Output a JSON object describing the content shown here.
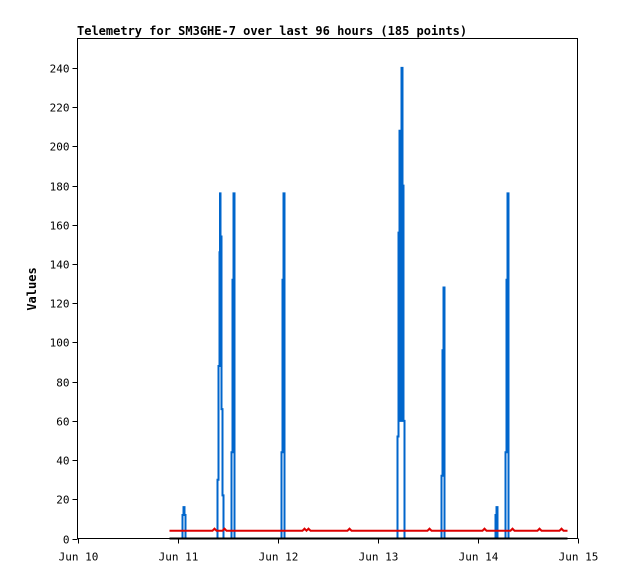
{
  "chart_data": {
    "type": "line",
    "title": "Telemetry for SM3GHE-7 over last 96 hours (185 points)",
    "xlabel": "",
    "ylabel": "Values",
    "xlim": [
      "Jun 10",
      "Jun 15"
    ],
    "ylim": [
      0,
      255
    ],
    "x_tick_labels": [
      "Jun 10",
      "Jun 11",
      "Jun 12",
      "Jun 13",
      "Jun 14",
      "Jun 15"
    ],
    "y_ticks": [
      0,
      20,
      40,
      60,
      80,
      100,
      120,
      140,
      160,
      180,
      200,
      220,
      240
    ],
    "grid": false,
    "legend": "none",
    "series": [
      {
        "color": "#0066cc",
        "style": "step",
        "x_days": [
          0.92,
          1.05,
          1.06,
          1.07,
          1.08,
          1.4,
          1.41,
          1.42,
          1.425,
          1.43,
          1.435,
          1.44,
          1.45,
          1.46,
          1.54,
          1.55,
          1.56,
          1.57,
          2.04,
          2.05,
          2.06,
          2.07,
          3.2,
          3.21,
          3.22,
          3.23,
          3.24,
          3.25,
          3.26,
          3.27,
          3.28,
          3.64,
          3.65,
          3.66,
          3.67,
          4.18,
          4.19,
          4.2,
          4.28,
          4.29,
          4.3,
          4.31,
          4.9
        ],
        "values": [
          0,
          12,
          16,
          12,
          0,
          30,
          88,
          146,
          176,
          110,
          154,
          66,
          22,
          0,
          44,
          132,
          176,
          0,
          44,
          132,
          176,
          0,
          52,
          156,
          208,
          60,
          240,
          180,
          60,
          0,
          0,
          32,
          96,
          128,
          0,
          12,
          16,
          0,
          44,
          132,
          176,
          0,
          0
        ]
      },
      {
        "color": "#dd0000",
        "style": "line",
        "x_days": [
          0.92,
          1.35,
          1.37,
          1.39,
          1.45,
          1.47,
          1.49,
          2.25,
          2.27,
          2.29,
          2.31,
          2.33,
          2.7,
          2.72,
          2.74,
          3.5,
          3.52,
          3.54,
          4.05,
          4.07,
          4.09,
          4.33,
          4.35,
          4.37,
          4.6,
          4.62,
          4.64,
          4.82,
          4.84,
          4.86,
          4.9
        ],
        "values": [
          4,
          4,
          5,
          4,
          4,
          5,
          4,
          4,
          5,
          4,
          5,
          4,
          4,
          5,
          4,
          4,
          5,
          4,
          4,
          5,
          4,
          4,
          5,
          4,
          4,
          5,
          4,
          4,
          5,
          4,
          4
        ]
      },
      {
        "color": "#000000",
        "style": "line",
        "x_days": [
          0.92,
          4.9
        ],
        "values": [
          0,
          0
        ]
      }
    ]
  }
}
